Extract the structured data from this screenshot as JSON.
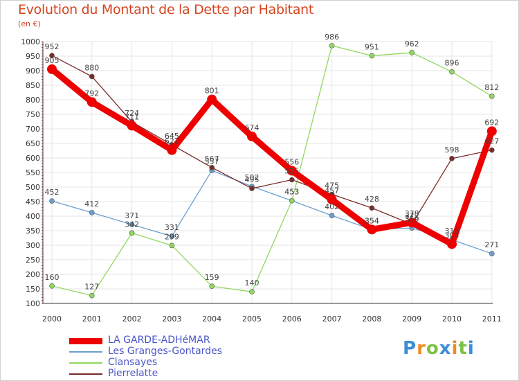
{
  "title": "Evolution du Montant de la Dette par Habitant",
  "subtitle": "(en €)",
  "logo": {
    "letters": [
      {
        "ch": "P",
        "color": "#3b8ed6"
      },
      {
        "ch": "r",
        "color": "#f08c1e"
      },
      {
        "ch": "o",
        "color": "#7cc242"
      },
      {
        "ch": "x",
        "color": "#3b8ed6"
      },
      {
        "ch": "i",
        "color": "#f08c1e"
      },
      {
        "ch": "t",
        "color": "#7cc242"
      },
      {
        "ch": "i",
        "color": "#3b8ed6"
      }
    ]
  },
  "chart_data": {
    "type": "line",
    "title": "Evolution du Montant de la Dette par Habitant",
    "subtitle": "(en €)",
    "x": [
      2000,
      2001,
      2002,
      2003,
      2004,
      2005,
      2006,
      2007,
      2008,
      2009,
      2010,
      2011
    ],
    "y_ticks": [
      100,
      150,
      200,
      250,
      300,
      350,
      400,
      450,
      500,
      550,
      600,
      650,
      700,
      750,
      800,
      850,
      900,
      950,
      1000
    ],
    "ylim": [
      100,
      1000
    ],
    "legend_position": "bottom-left",
    "series": [
      {
        "name": "LA GARDE-ADHéMAR",
        "color": "#ee0000",
        "values": [
          905,
          792,
          711,
          627,
          801,
          674,
          556,
          457,
          354,
          378,
          304,
          692
        ]
      },
      {
        "name": "Les Granges-Gontardes",
        "color": "#6a9fcf",
        "values": [
          452,
          412,
          371,
          331,
          557,
          502,
          453,
          402,
          354,
          359,
          319,
          271
        ]
      },
      {
        "name": "Clansayes",
        "color": "#8fd85f",
        "values": [
          160,
          127,
          342,
          299,
          159,
          140,
          453,
          986,
          951,
          962,
          896,
          812
        ]
      },
      {
        "name": "Pierrelatte",
        "color": "#7a2a2a",
        "values": [
          952,
          880,
          724,
          645,
          567,
          495,
          525,
          475,
          428,
          372,
          598,
          627
        ]
      }
    ]
  }
}
